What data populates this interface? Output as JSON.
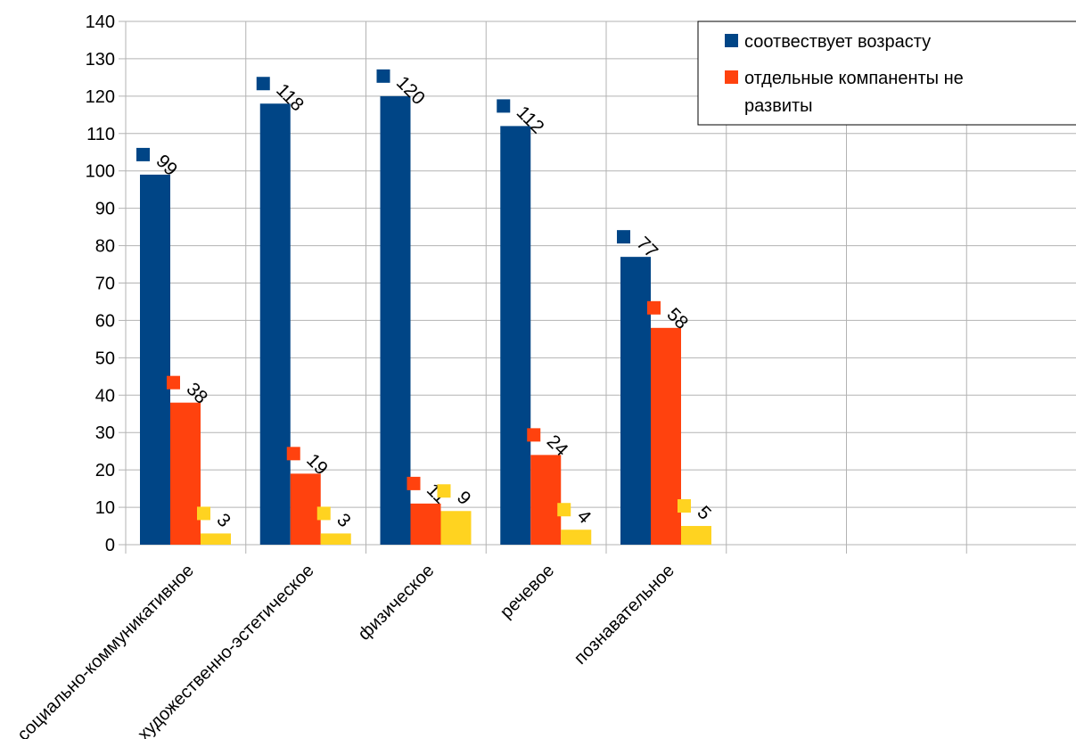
{
  "chart_data": {
    "type": "bar",
    "title": "",
    "xlabel": "",
    "ylabel": "",
    "ylim": [
      0,
      140
    ],
    "ytick_step": 10,
    "grid": true,
    "legend_position": "top-right",
    "categories": [
      "социально-коммуникативное",
      "художественно-эстетическое",
      "физическое",
      "речевое",
      "познавательное",
      "",
      "",
      ""
    ],
    "series": [
      {
        "name": "соотвествует возрасту",
        "color": "#004586",
        "values": [
          99,
          118,
          120,
          112,
          77,
          null,
          null,
          null
        ]
      },
      {
        "name": "отдельные компаненты не развиты",
        "color": "#ff420e",
        "values": [
          38,
          19,
          11,
          24,
          58,
          null,
          null,
          null
        ]
      },
      {
        "name": "",
        "color": "#ffd320",
        "values": [
          3,
          3,
          9,
          4,
          5,
          null,
          null,
          null
        ]
      }
    ],
    "legend_lines": [
      [
        "соотвествует возрасту"
      ],
      [
        "отдельные компаненты не",
        "развиты"
      ]
    ]
  }
}
